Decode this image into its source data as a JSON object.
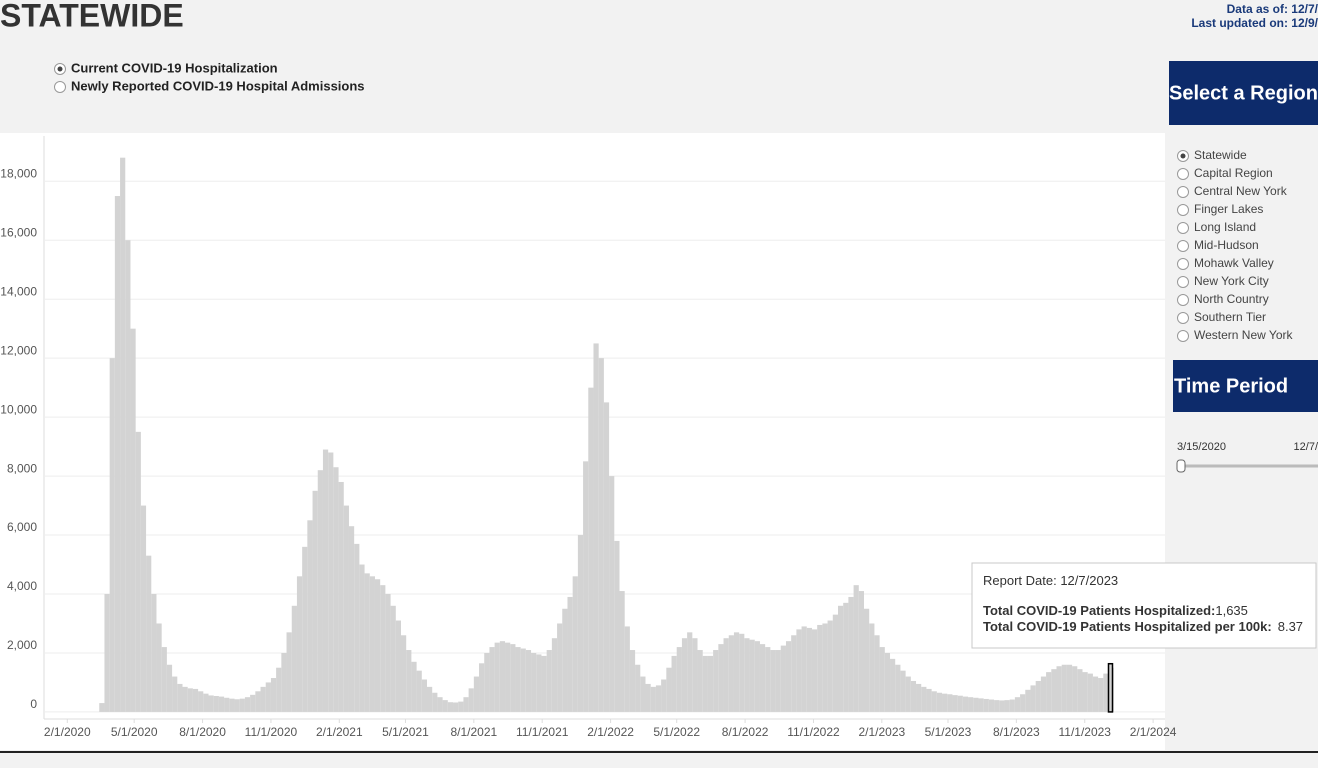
{
  "header": {
    "title": "STATEWIDE",
    "data_as_of": "Data as of: 12/7/",
    "last_updated": "Last updated on: 12/9/"
  },
  "measure": {
    "options": [
      "Current COVID-19 Hospitalization",
      "Newly Reported COVID-19 Hospital Admissions"
    ],
    "selected": 0
  },
  "region": {
    "title": "Select a Region",
    "options": [
      "Statewide",
      "Capital Region",
      "Central New York",
      "Finger Lakes",
      "Long Island",
      "Mid-Hudson",
      "Mohawk Valley",
      "New York City",
      "North Country",
      "Southern Tier",
      "Western New York"
    ],
    "selected": 0
  },
  "time_period": {
    "title": "Time Period",
    "start": "3/15/2020",
    "end": "12/7/"
  },
  "tooltip": {
    "date_label": "Report Date:",
    "date": "12/7/2023",
    "total_label": "Total COVID-19 Patients Hospitalized:",
    "total": "1,635",
    "per100k_label": "Total COVID-19 Patients Hospitalized per 100k:",
    "per100k": "8.37"
  },
  "chart_data": {
    "type": "bar",
    "color": "#d3d3d3",
    "grid": true,
    "x": [
      "3/15/2020",
      "3/22/2020",
      "3/29/2020",
      "4/5/2020",
      "4/12/2020",
      "4/19/2020",
      "4/26/2020",
      "5/3/2020",
      "5/10/2020",
      "5/17/2020",
      "5/24/2020",
      "5/31/2020",
      "6/7/2020",
      "6/14/2020",
      "6/21/2020",
      "6/28/2020",
      "7/5/2020",
      "7/12/2020",
      "7/19/2020",
      "7/26/2020",
      "8/2/2020",
      "8/9/2020",
      "8/16/2020",
      "8/23/2020",
      "8/30/2020",
      "9/6/2020",
      "9/13/2020",
      "9/20/2020",
      "9/27/2020",
      "10/4/2020",
      "10/11/2020",
      "10/18/2020",
      "10/25/2020",
      "11/1/2020",
      "11/8/2020",
      "11/15/2020",
      "11/22/2020",
      "11/29/2020",
      "12/6/2020",
      "12/13/2020",
      "12/20/2020",
      "12/27/2020",
      "1/3/2021",
      "1/10/2021",
      "1/17/2021",
      "1/24/2021",
      "1/31/2021",
      "2/7/2021",
      "2/14/2021",
      "2/21/2021",
      "2/28/2021",
      "3/7/2021",
      "3/14/2021",
      "3/21/2021",
      "3/28/2021",
      "4/4/2021",
      "4/11/2021",
      "4/18/2021",
      "4/25/2021",
      "5/2/2021",
      "5/9/2021",
      "5/16/2021",
      "5/23/2021",
      "5/30/2021",
      "6/6/2021",
      "6/13/2021",
      "6/20/2021",
      "6/27/2021",
      "7/4/2021",
      "7/11/2021",
      "7/18/2021",
      "7/25/2021",
      "8/1/2021",
      "8/8/2021",
      "8/15/2021",
      "8/22/2021",
      "8/29/2021",
      "9/5/2021",
      "9/12/2021",
      "9/19/2021",
      "9/26/2021",
      "10/3/2021",
      "10/10/2021",
      "10/17/2021",
      "10/24/2021",
      "10/31/2021",
      "11/7/2021",
      "11/14/2021",
      "11/21/2021",
      "11/28/2021",
      "12/5/2021",
      "12/12/2021",
      "12/19/2021",
      "12/26/2021",
      "1/2/2022",
      "1/9/2022",
      "1/16/2022",
      "1/23/2022",
      "1/30/2022",
      "2/6/2022",
      "2/13/2022",
      "2/20/2022",
      "2/27/2022",
      "3/6/2022",
      "3/13/2022",
      "3/20/2022",
      "3/27/2022",
      "4/3/2022",
      "4/10/2022",
      "4/17/2022",
      "4/24/2022",
      "5/1/2022",
      "5/8/2022",
      "5/15/2022",
      "5/22/2022",
      "5/29/2022",
      "6/5/2022",
      "6/12/2022",
      "6/19/2022",
      "6/26/2022",
      "7/3/2022",
      "7/10/2022",
      "7/17/2022",
      "7/24/2022",
      "7/31/2022",
      "8/7/2022",
      "8/14/2022",
      "8/21/2022",
      "8/28/2022",
      "9/4/2022",
      "9/11/2022",
      "9/18/2022",
      "9/25/2022",
      "10/2/2022",
      "10/9/2022",
      "10/16/2022",
      "10/23/2022",
      "10/30/2022",
      "11/6/2022",
      "11/13/2022",
      "11/20/2022",
      "11/27/2022",
      "12/4/2022",
      "12/11/2022",
      "12/18/2022",
      "12/25/2022",
      "1/1/2023",
      "1/8/2023",
      "1/15/2023",
      "1/22/2023",
      "1/29/2023",
      "2/5/2023",
      "2/12/2023",
      "2/19/2023",
      "2/26/2023",
      "3/5/2023",
      "3/12/2023",
      "3/19/2023",
      "3/26/2023",
      "4/2/2023",
      "4/9/2023",
      "4/16/2023",
      "4/23/2023",
      "4/30/2023",
      "5/7/2023",
      "5/14/2023",
      "5/21/2023",
      "5/28/2023",
      "6/4/2023",
      "6/11/2023",
      "6/18/2023",
      "6/25/2023",
      "7/2/2023",
      "7/9/2023",
      "7/16/2023",
      "7/23/2023",
      "7/30/2023",
      "8/6/2023",
      "8/13/2023",
      "8/20/2023",
      "8/27/2023",
      "9/3/2023",
      "9/10/2023",
      "9/17/2023",
      "9/24/2023",
      "10/1/2023",
      "10/8/2023",
      "10/15/2023",
      "10/22/2023",
      "10/29/2023",
      "11/5/2023",
      "11/12/2023",
      "11/19/2023",
      "11/26/2023",
      "12/3/2023",
      "12/7/2023"
    ],
    "values": [
      300,
      4000,
      12000,
      17500,
      18800,
      16000,
      13000,
      9500,
      7000,
      5300,
      4000,
      3000,
      2200,
      1600,
      1200,
      950,
      850,
      800,
      780,
      700,
      620,
      560,
      540,
      520,
      480,
      450,
      430,
      450,
      500,
      580,
      700,
      850,
      1000,
      1150,
      1500,
      2000,
      2700,
      3600,
      4600,
      5600,
      6500,
      7500,
      8200,
      8900,
      8800,
      8300,
      7800,
      7000,
      6300,
      5700,
      5000,
      4700,
      4600,
      4500,
      4300,
      4000,
      3600,
      3100,
      2600,
      2100,
      1700,
      1400,
      1100,
      850,
      650,
      500,
      400,
      330,
      320,
      350,
      500,
      800,
      1200,
      1650,
      2000,
      2200,
      2350,
      2400,
      2350,
      2300,
      2200,
      2150,
      2100,
      2000,
      1950,
      1900,
      2100,
      2500,
      3000,
      3500,
      3900,
      4600,
      6000,
      8500,
      11000,
      12500,
      12000,
      10500,
      8000,
      5800,
      4100,
      2900,
      2100,
      1600,
      1200,
      950,
      850,
      900,
      1100,
      1500,
      1900,
      2200,
      2500,
      2700,
      2500,
      2100,
      1900,
      1900,
      2100,
      2300,
      2500,
      2600,
      2700,
      2650,
      2500,
      2450,
      2400,
      2300,
      2200,
      2100,
      2100,
      2250,
      2400,
      2600,
      2800,
      2900,
      2850,
      2800,
      2950,
      3000,
      3100,
      3300,
      3600,
      3700,
      3900,
      4300,
      4100,
      3500,
      3000,
      2600,
      2200,
      2000,
      1800,
      1600,
      1400,
      1200,
      1050,
      950,
      850,
      780,
      700,
      650,
      620,
      600,
      570,
      550,
      520,
      500,
      480,
      460,
      440,
      420,
      400,
      390,
      400,
      420,
      500,
      600,
      750,
      900,
      1050,
      1200,
      1350,
      1450,
      1550,
      1600,
      1600,
      1550,
      1450,
      1350,
      1300,
      1200,
      1150,
      1300,
      1500,
      1635
    ],
    "xlim": [
      "1/2/2020",
      "2/17/2024"
    ],
    "xticks": [
      "2/1/2020",
      "5/1/2020",
      "8/1/2020",
      "11/1/2020",
      "2/1/2021",
      "5/1/2021",
      "8/1/2021",
      "11/1/2021",
      "2/1/2022",
      "5/1/2022",
      "8/1/2022",
      "11/1/2022",
      "2/1/2023",
      "5/1/2023",
      "8/1/2023",
      "11/1/2023",
      "2/1/2024"
    ],
    "ylim": [
      -240,
      19400
    ],
    "yticks": [
      0,
      {
        "value": 2000,
        "label": "2,000"
      },
      {
        "value": 4000,
        "label": "4,000"
      },
      {
        "value": 6000,
        "label": "6,000"
      },
      {
        "value": 8000,
        "label": "8,000"
      },
      {
        "value": 10000,
        "label": "10,000"
      },
      {
        "value": 12000,
        "label": "12,000"
      },
      {
        "value": 14000,
        "label": "14,000"
      },
      {
        "value": 16000,
        "label": "16,000"
      },
      {
        "value": 18000,
        "label": "18,000"
      }
    ]
  }
}
